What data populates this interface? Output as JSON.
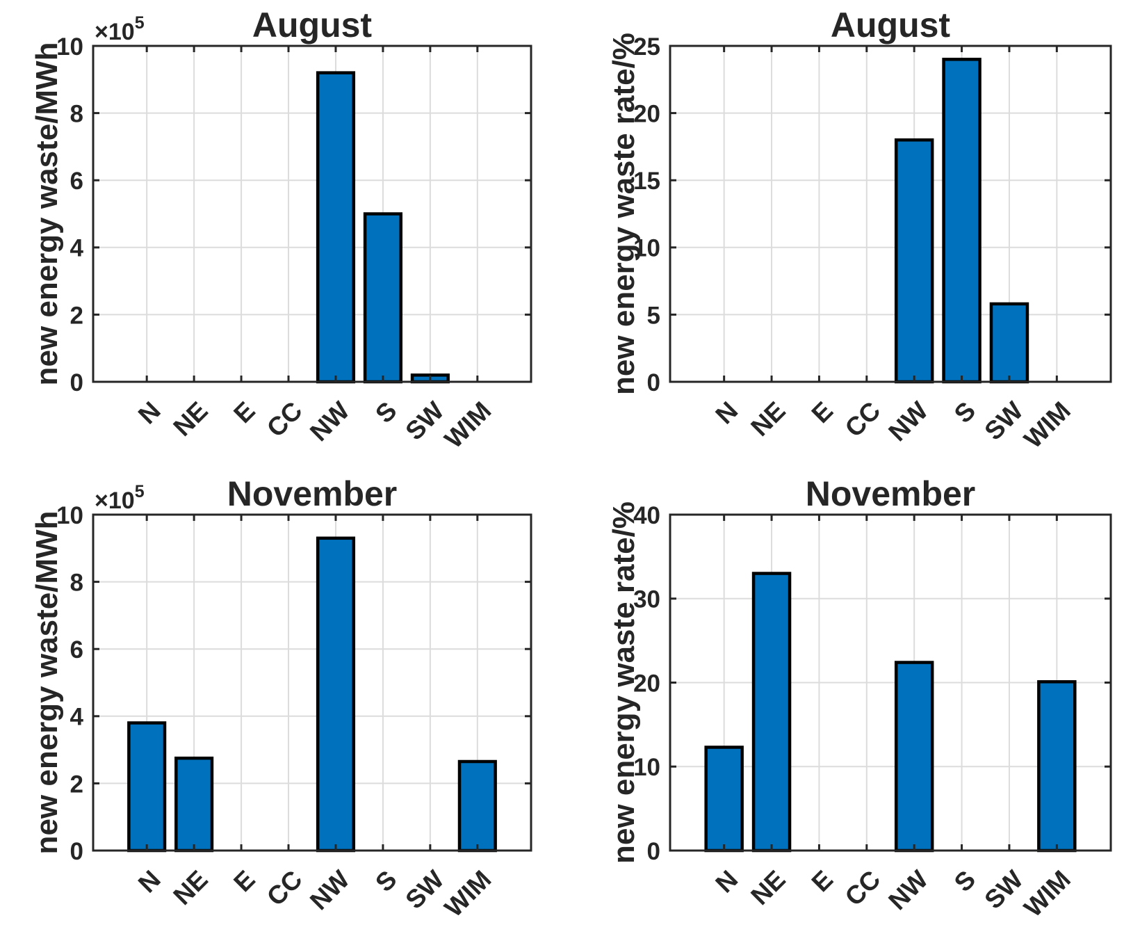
{
  "figure": {
    "kind": "matlab-style bar chart figure",
    "rows": 2,
    "cols": 2,
    "background": "#FFFFFF"
  },
  "palette": {
    "bar_fill": "#0072BD",
    "bar_edge": "#000000",
    "axis": "#262626",
    "grid": "#DCDCDC",
    "text": "#262626",
    "background": "#FFFFFF"
  },
  "chart_data": [
    {
      "id": "august-energy-waste",
      "type": "bar",
      "title": "August",
      "xlabel": "",
      "ylabel": "new energy waste/MWh",
      "y_scale_label": {
        "prefix": "×10",
        "exponent": "5"
      },
      "categories": [
        "N",
        "NE",
        "E",
        "CC",
        "NW",
        "S",
        "SW",
        "WIM"
      ],
      "values": [
        0,
        0,
        0,
        0,
        9.2,
        5.0,
        0.2,
        0
      ],
      "ylim": [
        0,
        10
      ],
      "yticks": [
        0,
        2,
        4,
        6,
        8,
        10
      ],
      "grid": true,
      "legend": null,
      "xtick_rotation_deg": 45
    },
    {
      "id": "august-waste-rate",
      "type": "bar",
      "title": "August",
      "xlabel": "",
      "ylabel": "new energy waste rate/%",
      "y_scale_label": null,
      "categories": [
        "N",
        "NE",
        "E",
        "CC",
        "NW",
        "S",
        "SW",
        "WIM"
      ],
      "values": [
        0,
        0,
        0,
        0,
        18.0,
        24.0,
        5.8,
        0
      ],
      "ylim": [
        0,
        25
      ],
      "yticks": [
        0,
        5,
        10,
        15,
        20,
        25
      ],
      "grid": true,
      "legend": null,
      "xtick_rotation_deg": 45
    },
    {
      "id": "november-energy-waste",
      "type": "bar",
      "title": "November",
      "xlabel": "",
      "ylabel": "new energy waste/MWh",
      "y_scale_label": {
        "prefix": "×10",
        "exponent": "5"
      },
      "categories": [
        "N",
        "NE",
        "E",
        "CC",
        "NW",
        "S",
        "SW",
        "WIM"
      ],
      "values": [
        3.8,
        2.75,
        0,
        0,
        9.3,
        0,
        0,
        2.65
      ],
      "ylim": [
        0,
        10
      ],
      "yticks": [
        0,
        2,
        4,
        6,
        8,
        10
      ],
      "grid": true,
      "legend": null,
      "xtick_rotation_deg": 45
    },
    {
      "id": "november-waste-rate",
      "type": "bar",
      "title": "November",
      "xlabel": "",
      "ylabel": "new energy waste rate/%",
      "y_scale_label": null,
      "categories": [
        "N",
        "NE",
        "E",
        "CC",
        "NW",
        "S",
        "SW",
        "WIM"
      ],
      "values": [
        12.3,
        33.0,
        0,
        0,
        22.4,
        0,
        0,
        20.1
      ],
      "ylim": [
        0,
        40
      ],
      "yticks": [
        0,
        10,
        20,
        30,
        40
      ],
      "grid": true,
      "legend": null,
      "xtick_rotation_deg": 45
    }
  ]
}
